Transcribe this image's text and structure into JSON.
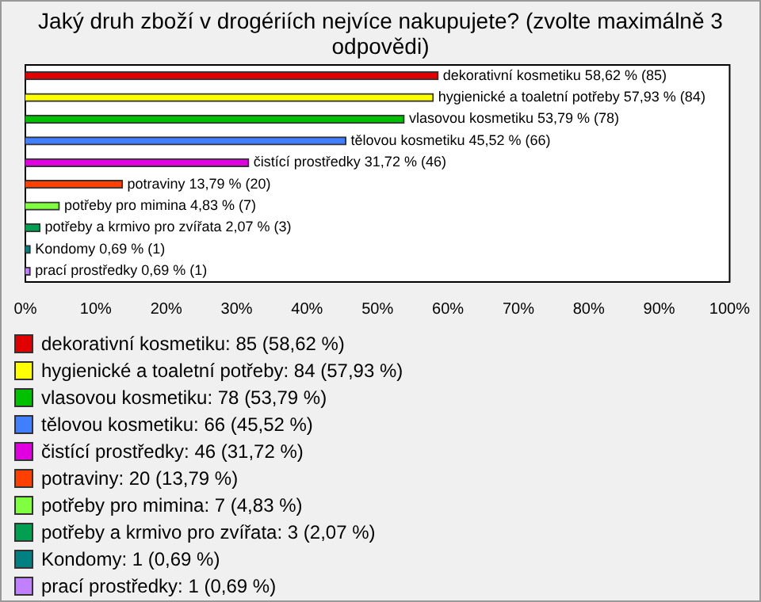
{
  "chart_data": {
    "type": "bar",
    "orientation": "horizontal",
    "title": "Jaký druh zboží v drogériích nejvíce nakupujete? (zvolte maximálně 3 odpovědi)",
    "categories": [
      "dekorativní kosmetiku",
      "hygienické a toaletní potřeby",
      "vlasovou kosmetiku",
      "tělovou kosmetiku",
      "čistící prostředky",
      "potraviny",
      "potřeby pro mimina",
      "potřeby a krmivo pro zvířata",
      "Kondomy",
      "prací prostředky"
    ],
    "values": [
      58.62,
      57.93,
      53.79,
      45.52,
      31.72,
      13.79,
      4.83,
      2.07,
      0.69,
      0.69
    ],
    "colors": [
      "#e00000",
      "#ffff00",
      "#00c000",
      "#4080ff",
      "#e000e0",
      "#ff4000",
      "#80ff40",
      "#00a050",
      "#008080",
      "#c080ff"
    ],
    "value_labels": [
      "58,62 % (85)",
      "57,93 % (84)",
      "53,79 % (78)",
      "45,52 % (66)",
      "31,72 % (46)",
      "13,79 % (20)",
      "4,83 % (7)",
      "2,07 % (3)",
      "0,69 % (1)",
      "0,69 % (1)"
    ],
    "xlim": [
      0,
      100
    ],
    "xticks": [
      {
        "value": 0,
        "label": "0%"
      },
      {
        "value": 10,
        "label": "10%"
      },
      {
        "value": 20,
        "label": "20%"
      },
      {
        "value": 30,
        "label": "30%"
      },
      {
        "value": 40,
        "label": "40%"
      },
      {
        "value": 50,
        "label": "50%"
      },
      {
        "value": 60,
        "label": "60%"
      },
      {
        "value": 70,
        "label": "70%"
      },
      {
        "value": 80,
        "label": "80%"
      },
      {
        "value": 90,
        "label": "90%"
      },
      {
        "value": 100,
        "label": "100%"
      }
    ],
    "tick_labels": "x",
    "grid": false,
    "annotations": [
      "dekorativní kosmetiku: 85 (58,62 %)",
      "hygienické a toaletní potřeby: 84 (57,93 %)",
      "vlasovou kosmetiku: 78 (53,79 %)",
      "tělovou kosmetiku: 66 (45,52 %)",
      "čistící prostředky: 46 (31,72 %)",
      "potraviny: 20 (13,79 %)",
      "potřeby pro mimina: 7 (4,83 %)",
      "potřeby a krmivo pro zvířata: 3 (2,07 %)",
      "Kondomy: 1 (0,69 %)",
      "prací prostředky: 1 (0,69 %)"
    ]
  }
}
